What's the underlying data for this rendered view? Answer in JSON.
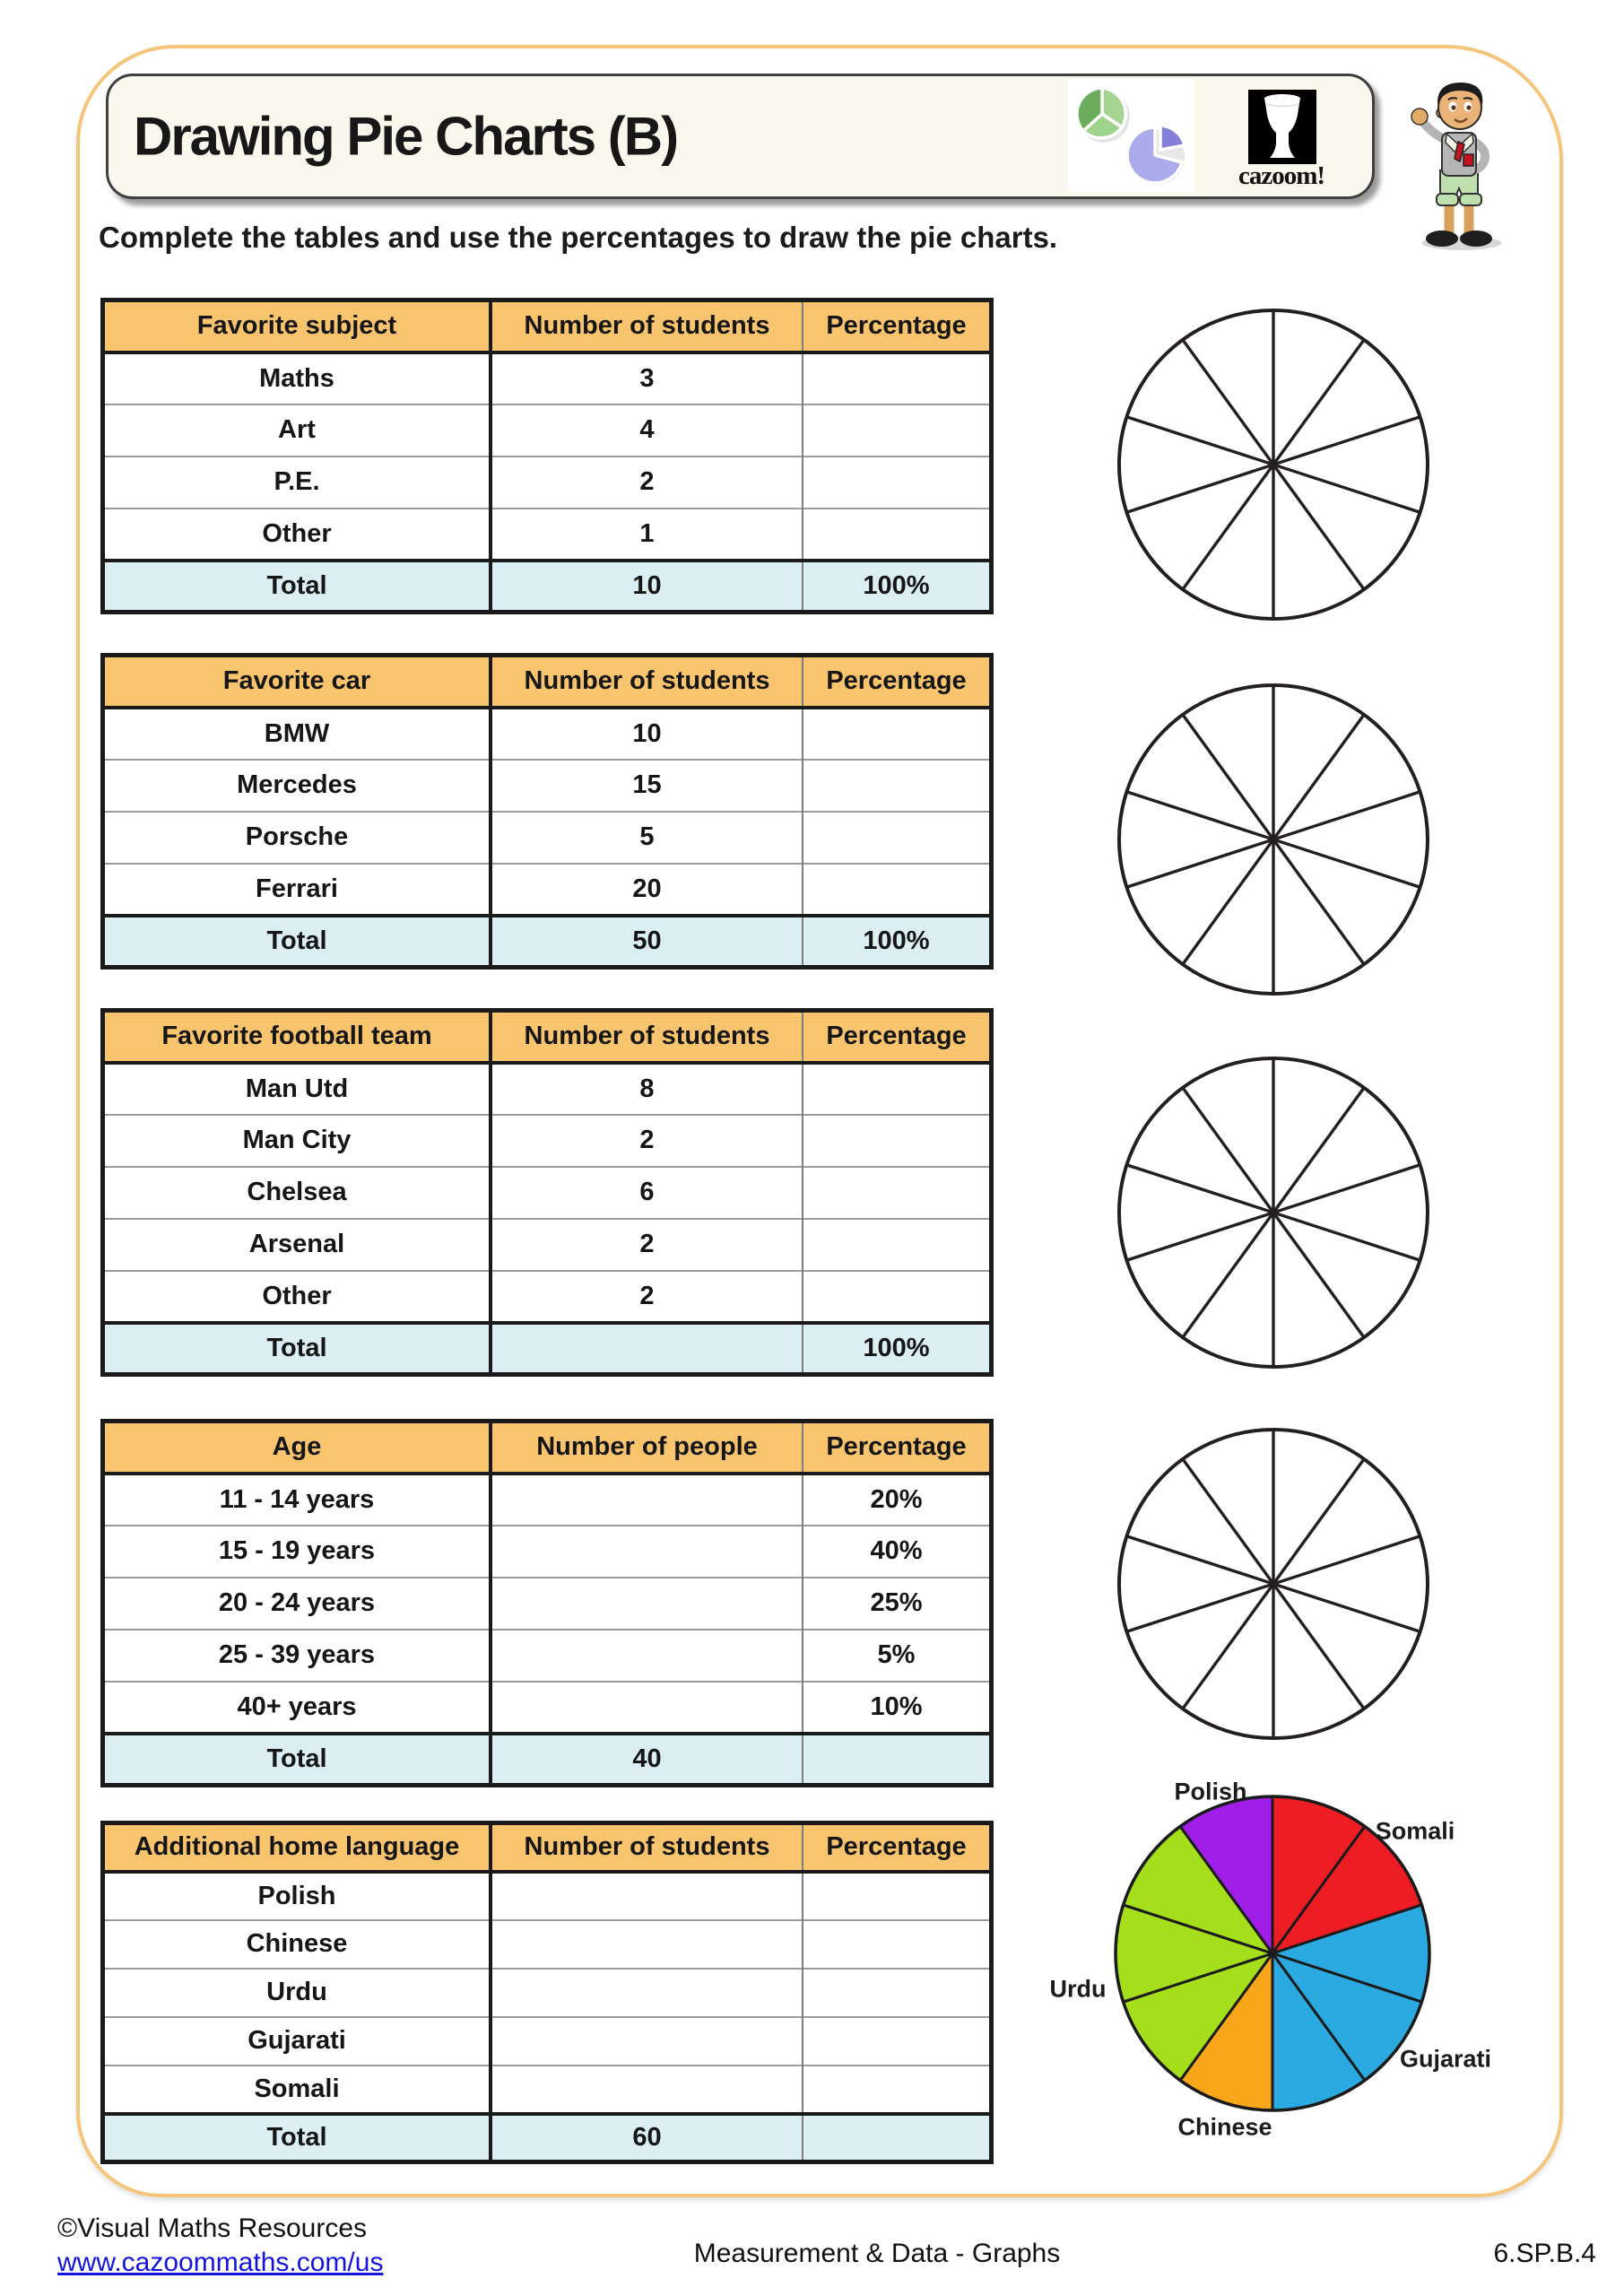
{
  "header": {
    "title": "Drawing Pie Charts (B)",
    "logo_text": "cazoom!"
  },
  "instruction": "Complete the tables and use the percentages to draw the pie charts.",
  "tables": [
    {
      "name": "favorite-subject",
      "headers": [
        "Favorite subject",
        "Number of students",
        "Percentage"
      ],
      "rows": [
        [
          "Maths",
          "3",
          ""
        ],
        [
          "Art",
          "4",
          ""
        ],
        [
          "P.E.",
          "2",
          ""
        ],
        [
          "Other",
          "1",
          ""
        ]
      ],
      "total": [
        "Total",
        "10",
        "100%"
      ]
    },
    {
      "name": "favorite-car",
      "headers": [
        "Favorite car",
        "Number of students",
        "Percentage"
      ],
      "rows": [
        [
          "BMW",
          "10",
          ""
        ],
        [
          "Mercedes",
          "15",
          ""
        ],
        [
          "Porsche",
          "5",
          ""
        ],
        [
          "Ferrari",
          "20",
          ""
        ]
      ],
      "total": [
        "Total",
        "50",
        "100%"
      ]
    },
    {
      "name": "favorite-football-team",
      "headers": [
        "Favorite football team",
        "Number of students",
        "Percentage"
      ],
      "rows": [
        [
          "Man Utd",
          "8",
          ""
        ],
        [
          "Man City",
          "2",
          ""
        ],
        [
          "Chelsea",
          "6",
          ""
        ],
        [
          "Arsenal",
          "2",
          ""
        ],
        [
          "Other",
          "2",
          ""
        ]
      ],
      "total": [
        "Total",
        "",
        "100%"
      ]
    },
    {
      "name": "age",
      "headers": [
        "Age",
        "Number of people",
        "Percentage"
      ],
      "rows": [
        [
          "11 - 14 years",
          "",
          "20%"
        ],
        [
          "15 - 19 years",
          "",
          "40%"
        ],
        [
          "20 - 24 years",
          "",
          "25%"
        ],
        [
          "25 - 39 years",
          "",
          "5%"
        ],
        [
          "40+ years",
          "",
          "10%"
        ]
      ],
      "total": [
        "Total",
        "40",
        ""
      ]
    },
    {
      "name": "additional-home-language",
      "headers": [
        "Additional home language",
        "Number of students",
        "Percentage"
      ],
      "rows": [
        [
          "Polish",
          "",
          ""
        ],
        [
          "Chinese",
          "",
          ""
        ],
        [
          "Urdu",
          "",
          ""
        ],
        [
          "Gujarati",
          "",
          ""
        ],
        [
          "Somali",
          "",
          ""
        ]
      ],
      "total": [
        "Total",
        "60",
        ""
      ]
    }
  ],
  "empty_pie": {
    "sector_count": 10,
    "count": 4
  },
  "chart_data": {
    "type": "pie",
    "categories": [
      "Somali",
      "Gujarati",
      "Chinese",
      "Urdu",
      "Polish"
    ],
    "values": [
      2,
      3,
      1,
      3,
      1
    ],
    "sector_angle_deg": 36,
    "start_angle_deg": 0,
    "direction": "clockwise",
    "colors": [
      "#EE1C23",
      "#2BAAE2",
      "#FAA61A",
      "#A5DE1B",
      "#A01EE8"
    ],
    "legend_position": "labels around pie"
  },
  "footer": {
    "copyright": "©Visual Maths Resources",
    "url": "www.cazoommaths.com/us",
    "center": "Measurement & Data - Graphs",
    "right": "6.SP.B.4"
  },
  "colors": {
    "page_border": "#F6C57C",
    "table_header_bg": "#F8C46E",
    "table_total_bg": "#DAEEF3",
    "table_border": "#1a1a1a",
    "footer_link": "#1414E0"
  }
}
